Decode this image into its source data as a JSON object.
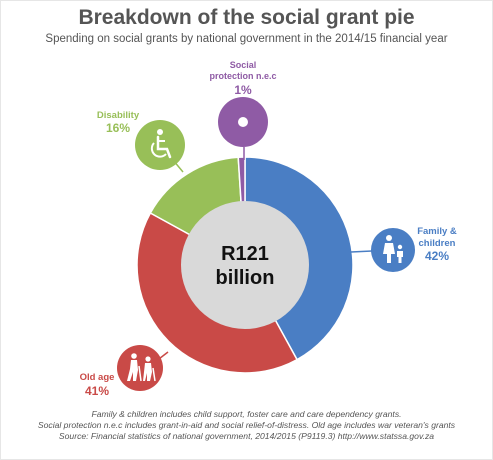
{
  "header": {
    "title": "Breakdown of the social grant pie",
    "subtitle": "Spending on social grants by national government in the 2014/15 financial year"
  },
  "center": {
    "line1": "R121",
    "line2": "billion"
  },
  "chart_data": {
    "type": "pie",
    "title": "Breakdown of the social grant pie",
    "subtitle": "Spending on social grants by national government in the 2014/15 financial year",
    "slices": [
      {
        "name": "Family & children",
        "label_lines": [
          "Family &",
          "children"
        ],
        "value": 42,
        "label": "42%",
        "color": "#4a7ec4",
        "icon": "family-icon"
      },
      {
        "name": "Old age",
        "label_lines": [
          "Old age"
        ],
        "value": 41,
        "label": "41%",
        "color": "#c94a47",
        "icon": "elderly-icon"
      },
      {
        "name": "Disability",
        "label_lines": [
          "Disability"
        ],
        "value": 16,
        "label": "16%",
        "color": "#98bf58",
        "icon": "wheelchair-icon"
      },
      {
        "name": "Social protection n.e.c",
        "label_lines": [
          "Social",
          "protection n.e.c"
        ],
        "value": 1,
        "label": "1%",
        "color": "#8f5ba5",
        "icon": "dot-icon"
      }
    ],
    "center_label": "R121 billion",
    "colors": {
      "center_fill": "#d9d9d9",
      "label_text": "#555555"
    }
  },
  "footer": {
    "line1": "Family & children includes child support, foster care and care dependency grants.",
    "line2": "Social protection n.e.c includes grant-in-aid and social relief-of-distress. Old age includes war veteran's grants",
    "line3": "Source: Financial statistics of national government, 2014/2015 (P9119.3)      http://www.statssa.gov.za"
  }
}
